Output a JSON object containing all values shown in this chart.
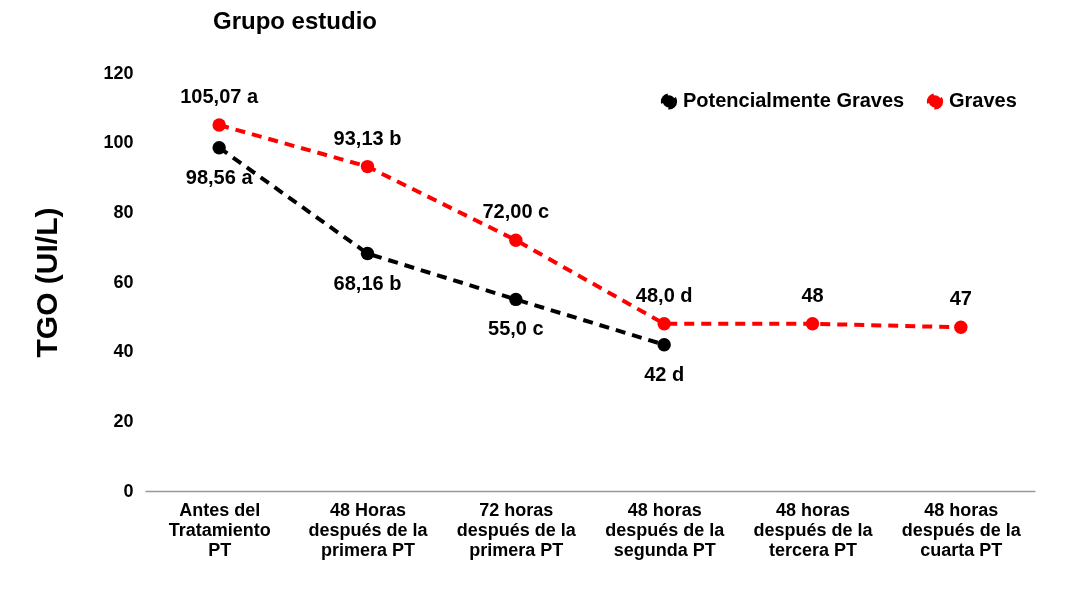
{
  "chart_data": {
    "type": "line",
    "title": "Grupo estudio",
    "ylabel": "TGO (UI/L)",
    "categories": [
      "Antes del\nTratamiento\nPT",
      "48 Horas\ndespués de la\nprimera PT",
      "72 horas\ndespués de la\nprimera PT",
      "48 horas\ndespués de la\nsegunda PT",
      "48 horas\ndespués de la\ntercera PT",
      "48 horas\ndespués de la\ncuarta PT"
    ],
    "series": [
      {
        "name": "Potencialmente Graves",
        "color": "#000000",
        "values": [
          98.56,
          68.16,
          55.0,
          42,
          null,
          null
        ],
        "value_labels": [
          "98,56 a",
          "68,16 b",
          "55,0 c",
          "42 d",
          null,
          null
        ]
      },
      {
        "name": "Graves",
        "color": "#ff0000",
        "values": [
          105.07,
          93.13,
          72.0,
          48.0,
          48,
          47
        ],
        "value_labels": [
          "105,07 a",
          "93,13 b",
          "72,00 c",
          "48,0 d",
          "48",
          "47"
        ]
      }
    ],
    "ylim": [
      0,
      120
    ],
    "yticks": [
      0,
      20,
      40,
      60,
      80,
      100,
      120
    ],
    "grid": false,
    "legend": "top right",
    "marker": "circle",
    "line_style": "dashed"
  }
}
